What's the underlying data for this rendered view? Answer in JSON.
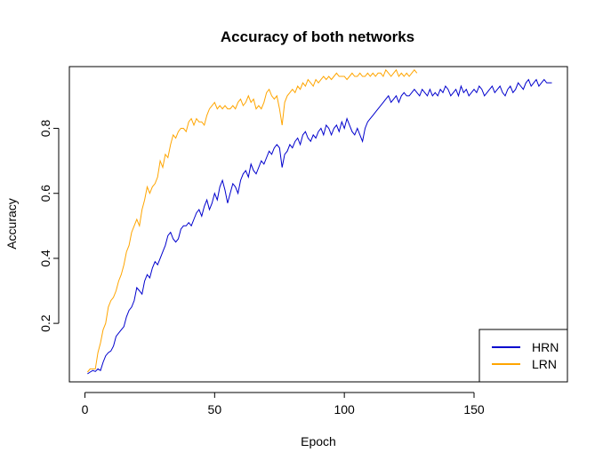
{
  "chart_data": {
    "type": "line",
    "title": "Accuracy of both networks",
    "xlabel": "Epoch",
    "ylabel": "Accuracy",
    "xlim": [
      -6,
      186
    ],
    "ylim": [
      0.02,
      0.99
    ],
    "xticks": [
      0,
      50,
      100,
      150
    ],
    "yticks": [
      0.2,
      0.4,
      0.6,
      0.8
    ],
    "grid": false,
    "legend_position": "bottom-right",
    "series": [
      {
        "name": "HRN",
        "color": "#0000CD",
        "points": [
          [
            1,
            0.045
          ],
          [
            2,
            0.05
          ],
          [
            3,
            0.055
          ],
          [
            4,
            0.052
          ],
          [
            5,
            0.06
          ],
          [
            6,
            0.055
          ],
          [
            7,
            0.08
          ],
          [
            8,
            0.1
          ],
          [
            9,
            0.11
          ],
          [
            10,
            0.115
          ],
          [
            11,
            0.13
          ],
          [
            12,
            0.16
          ],
          [
            13,
            0.17
          ],
          [
            14,
            0.18
          ],
          [
            15,
            0.19
          ],
          [
            16,
            0.22
          ],
          [
            17,
            0.24
          ],
          [
            18,
            0.25
          ],
          [
            19,
            0.27
          ],
          [
            20,
            0.31
          ],
          [
            21,
            0.3
          ],
          [
            22,
            0.29
          ],
          [
            23,
            0.33
          ],
          [
            24,
            0.35
          ],
          [
            25,
            0.34
          ],
          [
            26,
            0.37
          ],
          [
            27,
            0.39
          ],
          [
            28,
            0.38
          ],
          [
            29,
            0.4
          ],
          [
            30,
            0.42
          ],
          [
            31,
            0.44
          ],
          [
            32,
            0.47
          ],
          [
            33,
            0.48
          ],
          [
            34,
            0.46
          ],
          [
            35,
            0.45
          ],
          [
            36,
            0.46
          ],
          [
            37,
            0.49
          ],
          [
            38,
            0.5
          ],
          [
            39,
            0.5
          ],
          [
            40,
            0.51
          ],
          [
            41,
            0.5
          ],
          [
            42,
            0.52
          ],
          [
            43,
            0.54
          ],
          [
            44,
            0.55
          ],
          [
            45,
            0.53
          ],
          [
            46,
            0.56
          ],
          [
            47,
            0.58
          ],
          [
            48,
            0.55
          ],
          [
            49,
            0.57
          ],
          [
            50,
            0.6
          ],
          [
            51,
            0.58
          ],
          [
            52,
            0.62
          ],
          [
            53,
            0.64
          ],
          [
            54,
            0.61
          ],
          [
            55,
            0.57
          ],
          [
            56,
            0.6
          ],
          [
            57,
            0.63
          ],
          [
            58,
            0.62
          ],
          [
            59,
            0.6
          ],
          [
            60,
            0.64
          ],
          [
            61,
            0.66
          ],
          [
            62,
            0.67
          ],
          [
            63,
            0.65
          ],
          [
            64,
            0.69
          ],
          [
            65,
            0.67
          ],
          [
            66,
            0.66
          ],
          [
            67,
            0.68
          ],
          [
            68,
            0.7
          ],
          [
            69,
            0.69
          ],
          [
            70,
            0.71
          ],
          [
            71,
            0.73
          ],
          [
            72,
            0.72
          ],
          [
            73,
            0.74
          ],
          [
            74,
            0.75
          ],
          [
            75,
            0.74
          ],
          [
            76,
            0.68
          ],
          [
            77,
            0.72
          ],
          [
            78,
            0.73
          ],
          [
            79,
            0.75
          ],
          [
            80,
            0.74
          ],
          [
            81,
            0.76
          ],
          [
            82,
            0.77
          ],
          [
            83,
            0.75
          ],
          [
            84,
            0.78
          ],
          [
            85,
            0.79
          ],
          [
            86,
            0.77
          ],
          [
            87,
            0.76
          ],
          [
            88,
            0.78
          ],
          [
            89,
            0.77
          ],
          [
            90,
            0.79
          ],
          [
            91,
            0.8
          ],
          [
            92,
            0.78
          ],
          [
            93,
            0.81
          ],
          [
            94,
            0.8
          ],
          [
            95,
            0.78
          ],
          [
            96,
            0.8
          ],
          [
            97,
            0.81
          ],
          [
            98,
            0.79
          ],
          [
            99,
            0.82
          ],
          [
            100,
            0.8
          ],
          [
            101,
            0.83
          ],
          [
            102,
            0.81
          ],
          [
            103,
            0.79
          ],
          [
            104,
            0.78
          ],
          [
            105,
            0.8
          ],
          [
            106,
            0.78
          ],
          [
            107,
            0.76
          ],
          [
            108,
            0.8
          ],
          [
            109,
            0.82
          ],
          [
            110,
            0.83
          ],
          [
            111,
            0.84
          ],
          [
            112,
            0.85
          ],
          [
            113,
            0.86
          ],
          [
            114,
            0.87
          ],
          [
            115,
            0.88
          ],
          [
            116,
            0.89
          ],
          [
            117,
            0.9
          ],
          [
            118,
            0.88
          ],
          [
            119,
            0.89
          ],
          [
            120,
            0.9
          ],
          [
            121,
            0.88
          ],
          [
            122,
            0.9
          ],
          [
            123,
            0.91
          ],
          [
            124,
            0.9
          ],
          [
            125,
            0.9
          ],
          [
            126,
            0.91
          ],
          [
            127,
            0.92
          ],
          [
            128,
            0.91
          ],
          [
            129,
            0.9
          ],
          [
            130,
            0.92
          ],
          [
            131,
            0.91
          ],
          [
            132,
            0.9
          ],
          [
            133,
            0.92
          ],
          [
            134,
            0.9
          ],
          [
            135,
            0.91
          ],
          [
            136,
            0.9
          ],
          [
            137,
            0.92
          ],
          [
            138,
            0.91
          ],
          [
            139,
            0.93
          ],
          [
            140,
            0.92
          ],
          [
            141,
            0.9
          ],
          [
            142,
            0.91
          ],
          [
            143,
            0.92
          ],
          [
            144,
            0.9
          ],
          [
            145,
            0.93
          ],
          [
            146,
            0.91
          ],
          [
            147,
            0.92
          ],
          [
            148,
            0.9
          ],
          [
            149,
            0.91
          ],
          [
            150,
            0.92
          ],
          [
            151,
            0.91
          ],
          [
            152,
            0.93
          ],
          [
            153,
            0.92
          ],
          [
            154,
            0.9
          ],
          [
            155,
            0.91
          ],
          [
            156,
            0.92
          ],
          [
            157,
            0.93
          ],
          [
            158,
            0.91
          ],
          [
            159,
            0.92
          ],
          [
            160,
            0.93
          ],
          [
            161,
            0.91
          ],
          [
            162,
            0.9
          ],
          [
            163,
            0.92
          ],
          [
            164,
            0.93
          ],
          [
            165,
            0.91
          ],
          [
            166,
            0.92
          ],
          [
            167,
            0.94
          ],
          [
            168,
            0.93
          ],
          [
            169,
            0.92
          ],
          [
            170,
            0.94
          ],
          [
            171,
            0.95
          ],
          [
            172,
            0.93
          ],
          [
            173,
            0.94
          ],
          [
            174,
            0.95
          ],
          [
            175,
            0.93
          ],
          [
            176,
            0.94
          ],
          [
            177,
            0.95
          ],
          [
            178,
            0.94
          ],
          [
            179,
            0.94
          ],
          [
            180,
            0.94
          ]
        ]
      },
      {
        "name": "LRN",
        "color": "#FFA500",
        "points": [
          [
            1,
            0.05
          ],
          [
            2,
            0.06
          ],
          [
            3,
            0.06
          ],
          [
            4,
            0.06
          ],
          [
            5,
            0.11
          ],
          [
            6,
            0.14
          ],
          [
            7,
            0.18
          ],
          [
            8,
            0.2
          ],
          [
            9,
            0.25
          ],
          [
            10,
            0.27
          ],
          [
            11,
            0.28
          ],
          [
            12,
            0.3
          ],
          [
            13,
            0.33
          ],
          [
            14,
            0.35
          ],
          [
            15,
            0.38
          ],
          [
            16,
            0.42
          ],
          [
            17,
            0.44
          ],
          [
            18,
            0.48
          ],
          [
            19,
            0.5
          ],
          [
            20,
            0.52
          ],
          [
            21,
            0.5
          ],
          [
            22,
            0.55
          ],
          [
            23,
            0.58
          ],
          [
            24,
            0.62
          ],
          [
            25,
            0.6
          ],
          [
            26,
            0.62
          ],
          [
            27,
            0.63
          ],
          [
            28,
            0.65
          ],
          [
            29,
            0.7
          ],
          [
            30,
            0.68
          ],
          [
            31,
            0.72
          ],
          [
            32,
            0.71
          ],
          [
            33,
            0.75
          ],
          [
            34,
            0.78
          ],
          [
            35,
            0.77
          ],
          [
            36,
            0.79
          ],
          [
            37,
            0.8
          ],
          [
            38,
            0.8
          ],
          [
            39,
            0.79
          ],
          [
            40,
            0.82
          ],
          [
            41,
            0.83
          ],
          [
            42,
            0.81
          ],
          [
            43,
            0.83
          ],
          [
            44,
            0.82
          ],
          [
            45,
            0.82
          ],
          [
            46,
            0.81
          ],
          [
            47,
            0.84
          ],
          [
            48,
            0.86
          ],
          [
            49,
            0.87
          ],
          [
            50,
            0.88
          ],
          [
            51,
            0.86
          ],
          [
            52,
            0.87
          ],
          [
            53,
            0.86
          ],
          [
            54,
            0.87
          ],
          [
            55,
            0.86
          ],
          [
            56,
            0.86
          ],
          [
            57,
            0.87
          ],
          [
            58,
            0.86
          ],
          [
            59,
            0.88
          ],
          [
            60,
            0.89
          ],
          [
            61,
            0.87
          ],
          [
            62,
            0.88
          ],
          [
            63,
            0.9
          ],
          [
            64,
            0.88
          ],
          [
            65,
            0.89
          ],
          [
            66,
            0.86
          ],
          [
            67,
            0.87
          ],
          [
            68,
            0.86
          ],
          [
            69,
            0.88
          ],
          [
            70,
            0.91
          ],
          [
            71,
            0.92
          ],
          [
            72,
            0.9
          ],
          [
            73,
            0.89
          ],
          [
            74,
            0.9
          ],
          [
            75,
            0.86
          ],
          [
            76,
            0.81
          ],
          [
            77,
            0.88
          ],
          [
            78,
            0.9
          ],
          [
            79,
            0.91
          ],
          [
            80,
            0.92
          ],
          [
            81,
            0.91
          ],
          [
            82,
            0.93
          ],
          [
            83,
            0.92
          ],
          [
            84,
            0.94
          ],
          [
            85,
            0.93
          ],
          [
            86,
            0.95
          ],
          [
            87,
            0.94
          ],
          [
            88,
            0.93
          ],
          [
            89,
            0.95
          ],
          [
            90,
            0.94
          ],
          [
            91,
            0.95
          ],
          [
            92,
            0.96
          ],
          [
            93,
            0.95
          ],
          [
            94,
            0.96
          ],
          [
            95,
            0.95
          ],
          [
            96,
            0.96
          ],
          [
            97,
            0.97
          ],
          [
            98,
            0.96
          ],
          [
            99,
            0.96
          ],
          [
            100,
            0.96
          ],
          [
            101,
            0.95
          ],
          [
            102,
            0.96
          ],
          [
            103,
            0.97
          ],
          [
            104,
            0.96
          ],
          [
            105,
            0.96
          ],
          [
            106,
            0.97
          ],
          [
            107,
            0.96
          ],
          [
            108,
            0.96
          ],
          [
            109,
            0.97
          ],
          [
            110,
            0.96
          ],
          [
            111,
            0.97
          ],
          [
            112,
            0.96
          ],
          [
            113,
            0.97
          ],
          [
            114,
            0.97
          ],
          [
            115,
            0.96
          ],
          [
            116,
            0.98
          ],
          [
            117,
            0.97
          ],
          [
            118,
            0.96
          ],
          [
            119,
            0.97
          ],
          [
            120,
            0.98
          ],
          [
            121,
            0.96
          ],
          [
            122,
            0.97
          ],
          [
            123,
            0.96
          ],
          [
            124,
            0.97
          ],
          [
            125,
            0.96
          ],
          [
            126,
            0.97
          ],
          [
            127,
            0.98
          ],
          [
            128,
            0.97
          ]
        ]
      }
    ]
  }
}
